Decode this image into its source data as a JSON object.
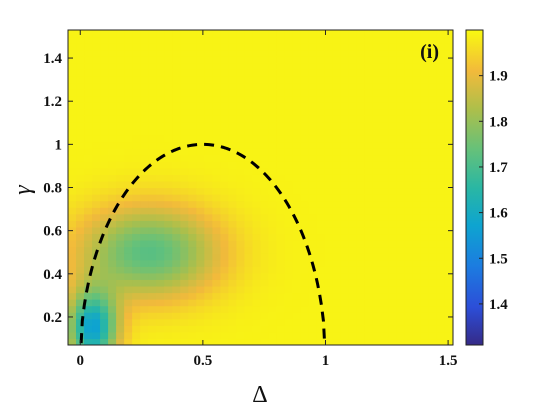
{
  "chart_data": {
    "type": "heatmap",
    "panel_label": "(i)",
    "xlabel": "Δ",
    "ylabel": "γ",
    "xlim": [
      -0.05,
      1.52
    ],
    "ylim": [
      0.07,
      1.53
    ],
    "x_ticks": [
      0,
      0.5,
      1,
      1.5
    ],
    "x_tick_labels": [
      "0",
      "0.5",
      "1",
      "1.5"
    ],
    "y_ticks": [
      0.2,
      0.4,
      0.6,
      0.8,
      1,
      1.2,
      1.4
    ],
    "y_tick_labels": [
      "0.2",
      "0.4",
      "0.6",
      "0.8",
      "1",
      "1.2",
      "1.4"
    ],
    "colorbar": {
      "range": [
        1.31,
        2.0
      ],
      "ticks": [
        1.4,
        1.5,
        1.6,
        1.7,
        1.8,
        1.9
      ],
      "tick_labels": [
        "1.4",
        "1.5",
        "1.6",
        "1.7",
        "1.8",
        "1.9"
      ]
    },
    "grid": false,
    "colormap": "parula",
    "background_value": 1.99,
    "field_model": {
      "description": "value = background - dip1*exp(-((x-x1)^2/(2*sx1^2) + (y-y1)^2/(2*sy1^2))) - dip2*exp(...)",
      "dips": [
        {
          "x": 0.28,
          "y": 0.5,
          "sx": 0.2,
          "sy": 0.15,
          "depth": 0.27
        },
        {
          "x": 0.05,
          "y": 0.15,
          "sx": 0.07,
          "sy": 0.12,
          "depth": 0.42
        }
      ]
    },
    "boundary_curve": {
      "style": "dashed",
      "color": "#000000",
      "equation": "gamma = sqrt(Delta*(1-Delta)) * 2",
      "x_range": [
        0,
        1
      ]
    }
  }
}
